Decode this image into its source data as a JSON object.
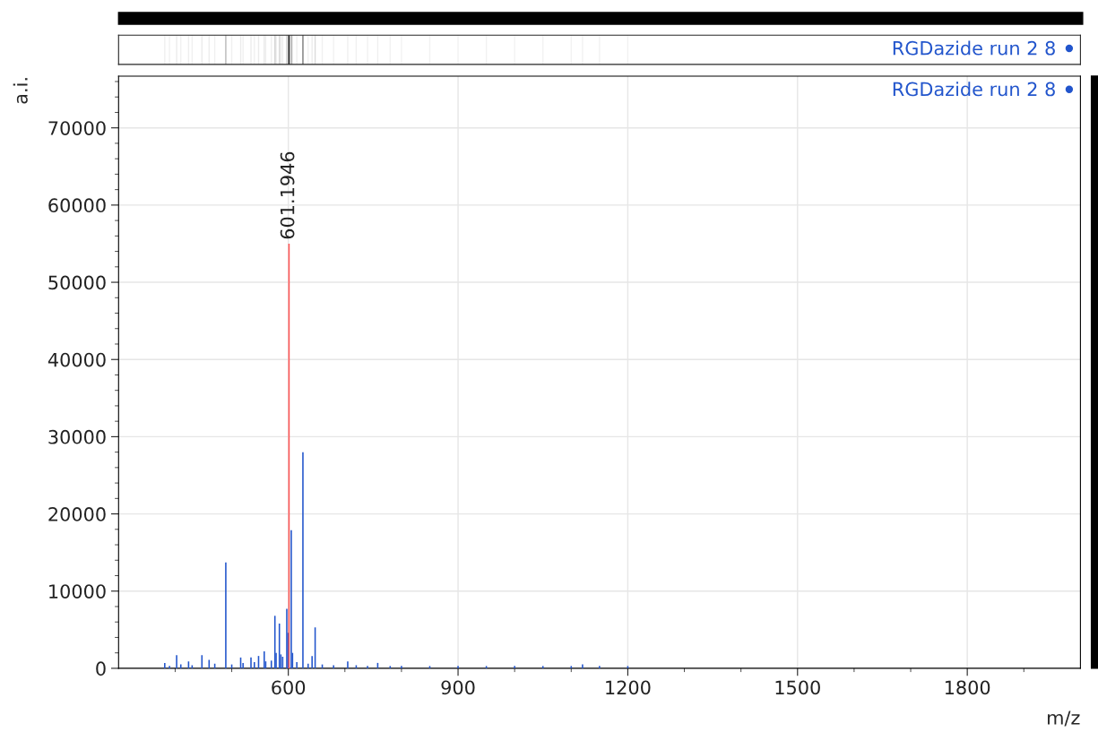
{
  "chart_data": {
    "type": "bar",
    "xlabel": "m/z",
    "ylabel": "a.i.",
    "series": [
      {
        "name": "RGDazide run 2 8",
        "color": "#2255cc",
        "x": [
          381.6,
          390,
          402.6,
          410,
          423.7,
          430,
          447.3,
          460,
          470,
          489.5,
          500,
          515.8,
          520,
          534,
          540,
          547.4,
          557.4,
          560,
          570,
          576.3,
          578.4,
          584.2,
          586.8,
          590,
          597.3,
          599.5,
          605.2,
          607.4,
          615,
          625.8,
          635,
          642,
          647.4,
          660,
          680,
          705,
          720,
          740,
          758,
          780,
          800,
          850,
          900,
          950,
          1000,
          1050,
          1100,
          1120,
          1150,
          1200
        ],
        "values": [
          700,
          300,
          1700,
          500,
          900,
          400,
          1700,
          1100,
          600,
          13700,
          500,
          1400,
          700,
          1400,
          800,
          1600,
          2200,
          900,
          1000,
          6800,
          2000,
          5800,
          1800,
          1500,
          7700,
          4600,
          17900,
          2000,
          800,
          28000,
          600,
          1600,
          5300,
          500,
          400,
          900,
          400,
          300,
          700,
          300,
          300,
          300,
          300,
          300,
          300,
          300,
          300,
          500,
          300,
          300
        ]
      },
      {
        "color": "#ff5555",
        "x": [
          601.1946
        ],
        "values": [
          55000
        ]
      }
    ],
    "annotations": [
      {
        "text": "601.1946",
        "x": 601.1946,
        "y": 55000
      }
    ],
    "xlim": [
      300,
      2000
    ],
    "ylim": [
      0,
      76700
    ],
    "xticks": [
      {
        "value": 400,
        "label": null
      },
      {
        "value": 500,
        "label": null
      },
      600,
      {
        "value": 700,
        "label": null
      },
      {
        "value": 800,
        "label": null
      },
      900,
      {
        "value": 1000,
        "label": null
      },
      {
        "value": 1100,
        "label": null
      },
      1200,
      {
        "value": 1300,
        "label": null
      },
      {
        "value": 1400,
        "label": null
      },
      1500,
      {
        "value": 1600,
        "label": null
      },
      {
        "value": 1700,
        "label": null
      },
      1800,
      {
        "value": 1900,
        "label": null
      }
    ],
    "yticks": [
      0,
      {
        "value": 2000,
        "label": null
      },
      {
        "value": 4000,
        "label": null
      },
      {
        "value": 6000,
        "label": null
      },
      {
        "value": 8000,
        "label": null
      },
      10000,
      {
        "value": 12000,
        "label": null
      },
      {
        "value": 14000,
        "label": null
      },
      {
        "value": 16000,
        "label": null
      },
      {
        "value": 18000,
        "label": null
      },
      20000,
      {
        "value": 22000,
        "label": null
      },
      {
        "value": 24000,
        "label": null
      },
      {
        "value": 26000,
        "label": null
      },
      {
        "value": 28000,
        "label": null
      },
      30000,
      {
        "value": 32000,
        "label": null
      },
      {
        "value": 34000,
        "label": null
      },
      {
        "value": 36000,
        "label": null
      },
      {
        "value": 38000,
        "label": null
      },
      40000,
      {
        "value": 42000,
        "label": null
      },
      {
        "value": 44000,
        "label": null
      },
      {
        "value": 46000,
        "label": null
      },
      {
        "value": 48000,
        "label": null
      },
      50000,
      {
        "value": 52000,
        "label": null
      },
      {
        "value": 54000,
        "label": null
      },
      {
        "value": 56000,
        "label": null
      },
      {
        "value": 58000,
        "label": null
      },
      60000,
      {
        "value": 62000,
        "label": null
      },
      {
        "value": 64000,
        "label": null
      },
      {
        "value": 66000,
        "label": null
      },
      {
        "value": 68000,
        "label": null
      },
      70000,
      {
        "value": 72000,
        "label": null
      },
      {
        "value": 74000,
        "label": null
      },
      {
        "value": 76000,
        "label": null
      }
    ],
    "grid": true,
    "legend": "top right",
    "marker": "circle"
  }
}
